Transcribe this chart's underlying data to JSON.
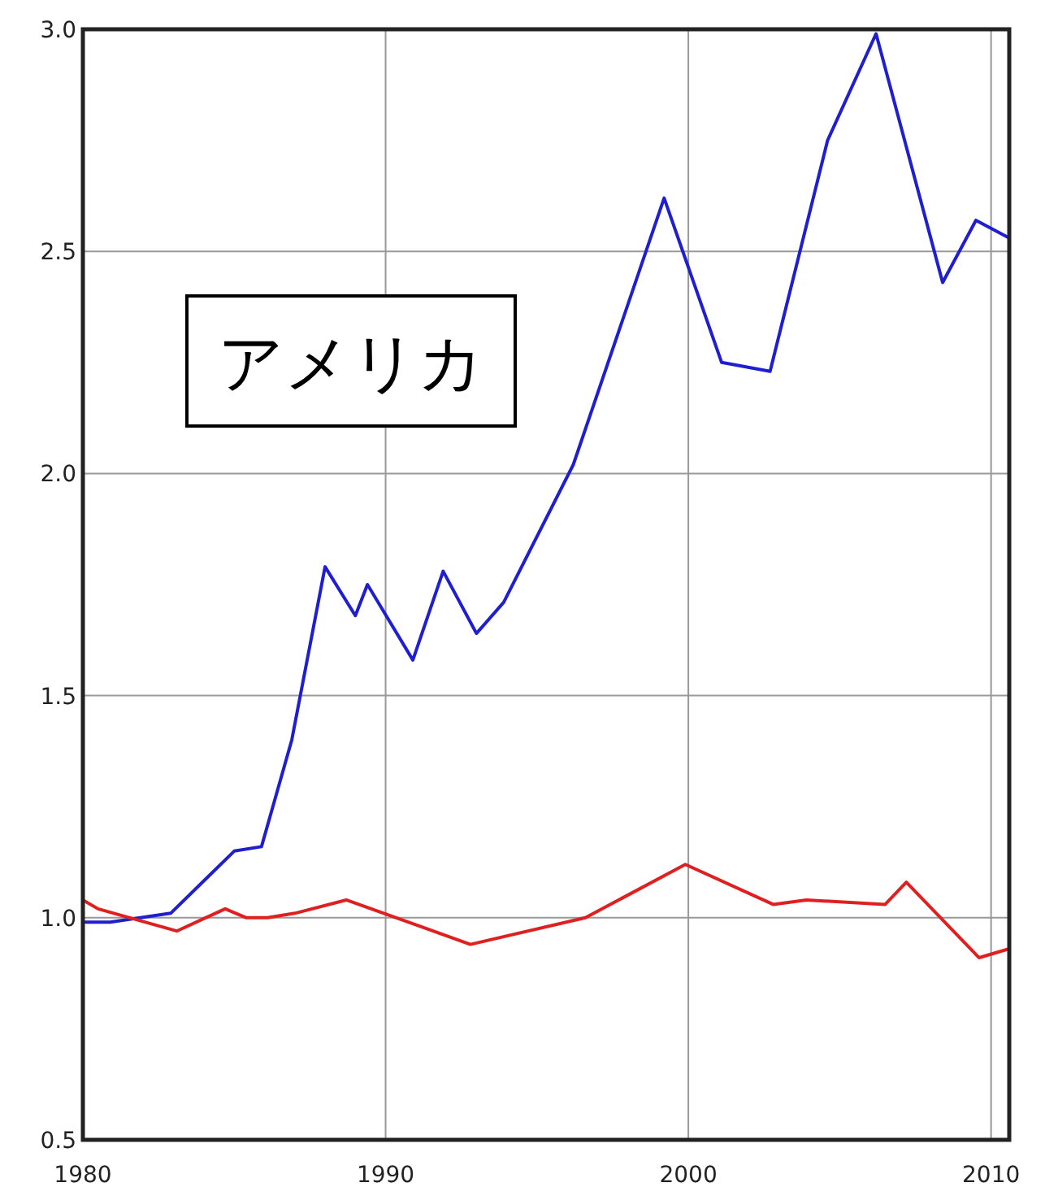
{
  "chart_data": {
    "type": "line",
    "annotations": [
      "アメリカ"
    ],
    "xlim": [
      1980,
      2010.6
    ],
    "xticks": [
      1980,
      1990,
      2000,
      2010
    ],
    "ylim": [
      0.5,
      3.0
    ],
    "yticks": [
      {
        "value": 0.5,
        "label": "0.5"
      },
      {
        "value": 1.0,
        "label": "1.0"
      },
      {
        "value": 1.5,
        "label": "1.5"
      },
      {
        "value": 2.0,
        "label": "2.0"
      },
      {
        "value": 2.5,
        "label": "2.5"
      },
      {
        "value": 3.0,
        "label": "3.0"
      }
    ],
    "grid": true,
    "series": [
      {
        "color": "#1f1fd0",
        "x": [
          1980.0,
          1980.9,
          1982.9,
          1985.0,
          1985.9,
          1986.9,
          1988.0,
          1989.0,
          1989.4,
          1990.9,
          1991.9,
          1993.0,
          1993.9,
          1996.2,
          1999.2,
          2001.1,
          2002.7,
          2004.6,
          2006.2,
          2008.4,
          2009.5,
          2010.6
        ],
        "values": [
          0.99,
          0.99,
          1.01,
          1.15,
          1.16,
          1.4,
          1.79,
          1.68,
          1.75,
          1.58,
          1.78,
          1.64,
          1.71,
          2.02,
          2.62,
          2.25,
          2.23,
          2.75,
          2.99,
          2.43,
          2.57,
          2.53
        ]
      },
      {
        "color": "#e02020",
        "x": [
          1980.0,
          1980.5,
          1983.1,
          1984.7,
          1985.4,
          1986.1,
          1987.0,
          1988.7,
          1992.8,
          1996.6,
          1999.9,
          2002.8,
          2003.9,
          2006.5,
          2007.2,
          2009.6,
          2010.6
        ],
        "values": [
          1.04,
          1.02,
          0.97,
          1.02,
          1.0,
          1.0,
          1.01,
          1.04,
          0.94,
          1.0,
          1.12,
          1.03,
          1.04,
          1.03,
          1.08,
          0.91,
          0.93
        ]
      }
    ]
  }
}
